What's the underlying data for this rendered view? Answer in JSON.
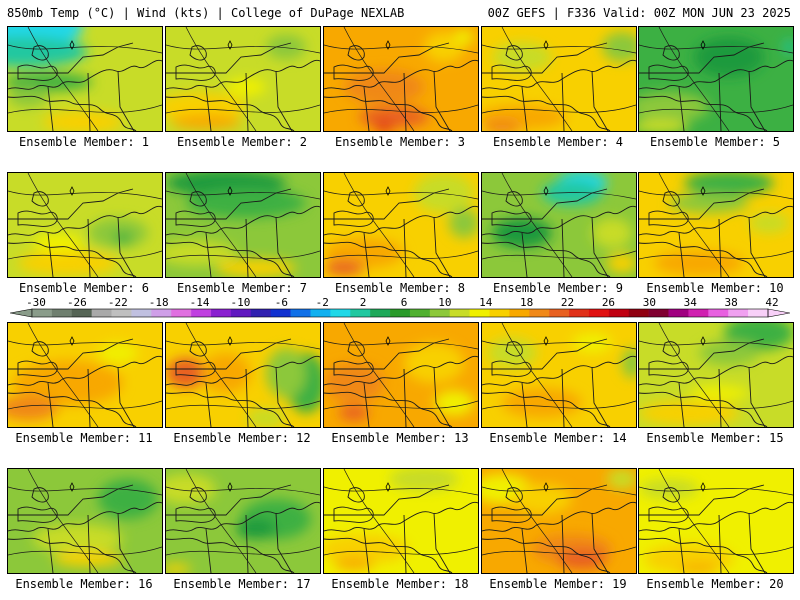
{
  "header": {
    "left": "850mb Temp (°C) | Wind (kts) | College of DuPage NEXLAB",
    "right": "00Z GEFS | F336 Valid: 00Z MON JUN 23 2025"
  },
  "colorbar": {
    "tick_labels": [
      "-30",
      "-26",
      "-22",
      "-18",
      "-14",
      "-10",
      "-6",
      "-2",
      "2",
      "6",
      "10",
      "14",
      "18",
      "22",
      "26",
      "30",
      "34",
      "38",
      "42"
    ],
    "colors": [
      "#8a9c8a",
      "#6f7f6f",
      "#556455",
      "#a9a9a9",
      "#bfbfbf",
      "#c0c0e0",
      "#cf9fe8",
      "#e070e0",
      "#c040e0",
      "#8a20d0",
      "#6018c0",
      "#3020b0",
      "#1030d0",
      "#1070e8",
      "#10b0f0",
      "#20d8e8",
      "#20c8a0",
      "#1ea85a",
      "#2a9a2a",
      "#50b030",
      "#8cc83a",
      "#c8dc28",
      "#f0f000",
      "#f8d000",
      "#f8a800",
      "#f08818",
      "#e86020",
      "#e03018",
      "#e01010",
      "#c00010",
      "#900010",
      "#800030",
      "#a00080",
      "#d020b0",
      "#e860e0",
      "#f0a0f0",
      "#f8d0f8"
    ]
  },
  "palette": {
    "deep_green": "#1a9a3c",
    "green": "#3cb043",
    "light_green": "#8cc83a",
    "yellow_green": "#c8dc28",
    "yellow": "#f0f000",
    "gold": "#f8d000",
    "orange": "#f8a800",
    "dark_orange": "#f08818",
    "red_orange": "#e86020",
    "red": "#e03018",
    "cyan": "#20d8e8",
    "teal": "#20c8a0"
  },
  "members": [
    {
      "label": "Ensemble Member: 1",
      "base": "yellow_green",
      "blobs": [
        [
          "cyan",
          20,
          0,
          110,
          45
        ],
        [
          "teal",
          15,
          25,
          130,
          30
        ],
        [
          "green",
          40,
          55,
          90,
          18
        ],
        [
          "gold",
          75,
          95,
          80,
          22
        ],
        [
          "light_green",
          20,
          70,
          40,
          20
        ]
      ]
    },
    {
      "label": "Ensemble Member: 2",
      "base": "yellow_green",
      "blobs": [
        [
          "gold",
          35,
          80,
          90,
          30
        ],
        [
          "orange",
          40,
          95,
          70,
          15
        ],
        [
          "light_green",
          120,
          20,
          40,
          25
        ],
        [
          "yellow",
          80,
          60,
          40,
          18
        ]
      ]
    },
    {
      "label": "Ensemble Member: 3",
      "base": "orange",
      "blobs": [
        [
          "dark_orange",
          60,
          60,
          80,
          35
        ],
        [
          "red_orange",
          70,
          90,
          70,
          20
        ],
        [
          "red",
          60,
          100,
          20,
          10
        ],
        [
          "gold",
          120,
          20,
          40,
          30
        ],
        [
          "yellow",
          140,
          10,
          20,
          15
        ]
      ]
    },
    {
      "label": "Ensemble Member: 4",
      "base": "gold",
      "blobs": [
        [
          "yellow_green",
          40,
          30,
          60,
          30
        ],
        [
          "light_green",
          140,
          20,
          40,
          30
        ],
        [
          "orange",
          40,
          90,
          90,
          25
        ],
        [
          "dark_orange",
          20,
          100,
          40,
          15
        ]
      ]
    },
    {
      "label": "Ensemble Member: 5",
      "base": "green",
      "blobs": [
        [
          "deep_green",
          90,
          30,
          70,
          40
        ],
        [
          "light_green",
          30,
          80,
          80,
          30
        ],
        [
          "yellow_green",
          20,
          100,
          60,
          15
        ],
        [
          "teal",
          150,
          20,
          10,
          15
        ]
      ]
    },
    {
      "label": "Ensemble Member: 6",
      "base": "yellow_green",
      "blobs": [
        [
          "light_green",
          110,
          60,
          60,
          30
        ],
        [
          "gold",
          60,
          90,
          100,
          25
        ],
        [
          "yellow",
          50,
          70,
          50,
          20
        ],
        [
          "green",
          115,
          65,
          20,
          12
        ]
      ]
    },
    {
      "label": "Ensemble Member: 7",
      "base": "light_green",
      "blobs": [
        [
          "deep_green",
          60,
          10,
          120,
          25
        ],
        [
          "green",
          80,
          30,
          120,
          30
        ],
        [
          "yellow_green",
          30,
          80,
          80,
          25
        ],
        [
          "gold",
          90,
          95,
          80,
          18
        ]
      ]
    },
    {
      "label": "Ensemble Member: 8",
      "base": "gold",
      "blobs": [
        [
          "yellow_green",
          120,
          20,
          60,
          40
        ],
        [
          "light_green",
          140,
          50,
          30,
          30
        ],
        [
          "orange",
          40,
          80,
          80,
          30
        ],
        [
          "red_orange",
          20,
          95,
          40,
          15
        ]
      ]
    },
    {
      "label": "Ensemble Member: 9",
      "base": "light_green",
      "blobs": [
        [
          "cyan",
          100,
          10,
          50,
          25
        ],
        [
          "teal",
          90,
          20,
          60,
          25
        ],
        [
          "deep_green",
          40,
          60,
          60,
          30
        ],
        [
          "yellow_green",
          130,
          60,
          40,
          30
        ],
        [
          "gold",
          140,
          90,
          30,
          20
        ]
      ]
    },
    {
      "label": "Ensemble Member: 10",
      "base": "gold",
      "blobs": [
        [
          "green",
          90,
          10,
          90,
          25
        ],
        [
          "light_green",
          70,
          30,
          80,
          20
        ],
        [
          "yellow_green",
          130,
          50,
          40,
          20
        ],
        [
          "orange",
          60,
          90,
          90,
          25
        ]
      ]
    },
    {
      "label": "Ensemble Member: 11",
      "base": "gold",
      "blobs": [
        [
          "orange",
          60,
          60,
          110,
          45
        ],
        [
          "dark_orange",
          20,
          85,
          60,
          25
        ],
        [
          "yellow",
          110,
          30,
          40,
          20
        ]
      ]
    },
    {
      "label": "Ensemble Member: 12",
      "base": "gold",
      "blobs": [
        [
          "green",
          140,
          60,
          40,
          60
        ],
        [
          "light_green",
          120,
          50,
          40,
          50
        ],
        [
          "red_orange",
          20,
          50,
          40,
          30
        ],
        [
          "orange",
          60,
          50,
          50,
          40
        ],
        [
          "yellow_green",
          100,
          95,
          40,
          20
        ]
      ]
    },
    {
      "label": "Ensemble Member: 13",
      "base": "orange",
      "blobs": [
        [
          "dark_orange",
          30,
          60,
          60,
          40
        ],
        [
          "gold",
          110,
          40,
          60,
          40
        ],
        [
          "yellow",
          130,
          80,
          40,
          25
        ],
        [
          "red_orange",
          30,
          90,
          30,
          15
        ]
      ]
    },
    {
      "label": "Ensemble Member: 14",
      "base": "gold",
      "blobs": [
        [
          "yellow_green",
          30,
          30,
          50,
          30
        ],
        [
          "light_green",
          150,
          40,
          20,
          30
        ],
        [
          "orange",
          60,
          80,
          80,
          30
        ],
        [
          "yellow",
          110,
          20,
          40,
          20
        ]
      ]
    },
    {
      "label": "Ensemble Member: 15",
      "base": "yellow_green",
      "blobs": [
        [
          "green",
          120,
          10,
          70,
          35
        ],
        [
          "light_green",
          90,
          30,
          60,
          25
        ],
        [
          "gold",
          50,
          90,
          100,
          25
        ],
        [
          "yellow",
          80,
          70,
          60,
          15
        ]
      ]
    },
    {
      "label": "Ensemble Member: 16",
      "base": "light_green",
      "blobs": [
        [
          "green",
          120,
          30,
          60,
          40
        ],
        [
          "yellow_green",
          70,
          70,
          90,
          30
        ],
        [
          "gold",
          80,
          90,
          70,
          15
        ]
      ]
    },
    {
      "label": "Ensemble Member: 17",
      "base": "light_green",
      "blobs": [
        [
          "green",
          110,
          50,
          70,
          40
        ],
        [
          "deep_green",
          90,
          60,
          40,
          20
        ],
        [
          "yellow_green",
          20,
          20,
          60,
          30
        ],
        [
          "gold",
          10,
          100,
          30,
          10
        ]
      ]
    },
    {
      "label": "Ensemble Member: 18",
      "base": "yellow",
      "blobs": [
        [
          "gold",
          40,
          80,
          90,
          30
        ],
        [
          "yellow_green",
          100,
          10,
          70,
          25
        ],
        [
          "orange",
          30,
          95,
          40,
          12
        ]
      ]
    },
    {
      "label": "Ensemble Member: 19",
      "base": "orange",
      "blobs": [
        [
          "yellow",
          20,
          20,
          60,
          30
        ],
        [
          "gold",
          60,
          30,
          60,
          30
        ],
        [
          "dark_orange",
          90,
          80,
          80,
          30
        ],
        [
          "red_orange",
          100,
          90,
          50,
          20
        ],
        [
          "yellow_green",
          140,
          10,
          30,
          20
        ]
      ]
    },
    {
      "label": "Ensemble Member: 20",
      "base": "yellow",
      "blobs": [
        [
          "gold",
          50,
          90,
          90,
          30
        ],
        [
          "yellow_green",
          30,
          20,
          60,
          20
        ],
        [
          "orange",
          60,
          100,
          40,
          10
        ]
      ]
    }
  ]
}
